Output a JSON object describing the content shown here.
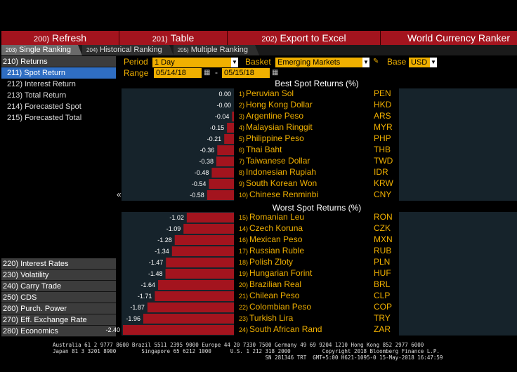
{
  "toolbar": {
    "refresh": {
      "num": "200)",
      "label": "Refresh"
    },
    "table": {
      "num": "201)",
      "label": "Table"
    },
    "export": {
      "num": "202)",
      "label": "Export to Excel"
    },
    "title": "World Currency Ranker"
  },
  "tabs": [
    {
      "num": "203)",
      "label": "Single Ranking",
      "active": true
    },
    {
      "num": "204)",
      "label": "Historical Ranking",
      "active": false
    },
    {
      "num": "205)",
      "label": "Multiple Ranking",
      "active": false
    }
  ],
  "menu": {
    "returns_header": "210) Returns",
    "returns_items": [
      "211) Spot Return",
      "212) Interest Return",
      "213) Total Return",
      "214) Forecasted Spot",
      "215) Forecasted Total"
    ],
    "selected_index": 0,
    "lower_headers": [
      "220) Interest Rates",
      "230) Volatility",
      "240) Carry Trade",
      "250) CDS",
      "260) Purch. Power",
      "270) Eff. Exchange Rate",
      "280) Economics"
    ],
    "collapse_glyph": "«"
  },
  "controls": {
    "period_label": "Period",
    "period_value": "1 Day",
    "basket_label": "Basket",
    "basket_value": "Emerging Markets",
    "base_label": "Base",
    "base_value": "USD",
    "range_label": "Range",
    "range_from": "05/14/18",
    "range_sep": "-",
    "range_to": "05/15/18"
  },
  "sections": {
    "best_title": "Best Spot Returns (%)",
    "worst_title": "Worst Spot Returns (%)"
  },
  "rows_best": [
    {
      "rank": "1)",
      "name": "Peruvian Sol",
      "code": "PEN",
      "value": 0.0,
      "label": "0.00"
    },
    {
      "rank": "2)",
      "name": "Hong Kong Dollar",
      "code": "HKD",
      "value": -0.0,
      "label": "-0.00"
    },
    {
      "rank": "3)",
      "name": "Argentine Peso",
      "code": "ARS",
      "value": -0.04,
      "label": "-0.04"
    },
    {
      "rank": "4)",
      "name": "Malaysian Ringgit",
      "code": "MYR",
      "value": -0.15,
      "label": "-0.15"
    },
    {
      "rank": "5)",
      "name": "Philippine Peso",
      "code": "PHP",
      "value": -0.21,
      "label": "-0.21"
    },
    {
      "rank": "6)",
      "name": "Thai Baht",
      "code": "THB",
      "value": -0.36,
      "label": "-0.36"
    },
    {
      "rank": "7)",
      "name": "Taiwanese Dollar",
      "code": "TWD",
      "value": -0.38,
      "label": "-0.38"
    },
    {
      "rank": "8)",
      "name": "Indonesian Rupiah",
      "code": "IDR",
      "value": -0.48,
      "label": "-0.48"
    },
    {
      "rank": "9)",
      "name": "South Korean Won",
      "code": "KRW",
      "value": -0.54,
      "label": "-0.54"
    },
    {
      "rank": "10)",
      "name": "Chinese Renminbi",
      "code": "CNY",
      "value": -0.58,
      "label": "-0.58"
    }
  ],
  "rows_worst": [
    {
      "rank": "15)",
      "name": "Romanian Leu",
      "code": "RON",
      "value": -1.02,
      "label": "-1.02"
    },
    {
      "rank": "14)",
      "name": "Czech Koruna",
      "code": "CZK",
      "value": -1.09,
      "label": "-1.09"
    },
    {
      "rank": "16)",
      "name": "Mexican Peso",
      "code": "MXN",
      "value": -1.28,
      "label": "-1.28"
    },
    {
      "rank": "17)",
      "name": "Russian Ruble",
      "code": "RUB",
      "value": -1.34,
      "label": "-1.34"
    },
    {
      "rank": "18)",
      "name": "Polish Zloty",
      "code": "PLN",
      "value": -1.47,
      "label": "-1.47"
    },
    {
      "rank": "19)",
      "name": "Hungarian Forint",
      "code": "HUF",
      "value": -1.48,
      "label": "-1.48"
    },
    {
      "rank": "20)",
      "name": "Brazilian Real",
      "code": "BRL",
      "value": -1.64,
      "label": "-1.64"
    },
    {
      "rank": "21)",
      "name": "Chilean Peso",
      "code": "CLP",
      "value": -1.71,
      "label": "-1.71"
    },
    {
      "rank": "22)",
      "name": "Colombian Peso",
      "code": "COP",
      "value": -1.87,
      "label": "-1.87"
    },
    {
      "rank": "23)",
      "name": "Turkish Lira",
      "code": "TRY",
      "value": -1.96,
      "label": "-1.96"
    },
    {
      "rank": "24)",
      "name": "South African Rand",
      "code": "ZAR",
      "value": -2.4,
      "label": "-2.40"
    }
  ],
  "colors": {
    "bar": "#a3141e",
    "label": "#f0b000",
    "selected": "#2f6ec3"
  },
  "footer": {
    "line1": "Australia 61 2 9777 8600 Brazil 5511 2395 9000 Europe 44 20 7330 7500 Germany 49 69 9204 1210 Hong Kong 852 2977 6000",
    "line2": "Japan 81 3 3201 8900        Singapore 65 6212 1000      U.S. 1 212 318 2000          Copyright 2018 Bloomberg Finance L.P.",
    "line3": "                                                                   SN 281346 TRT  GMT+5:00 H621-1095-0 15-May-2018 16:47:59"
  }
}
